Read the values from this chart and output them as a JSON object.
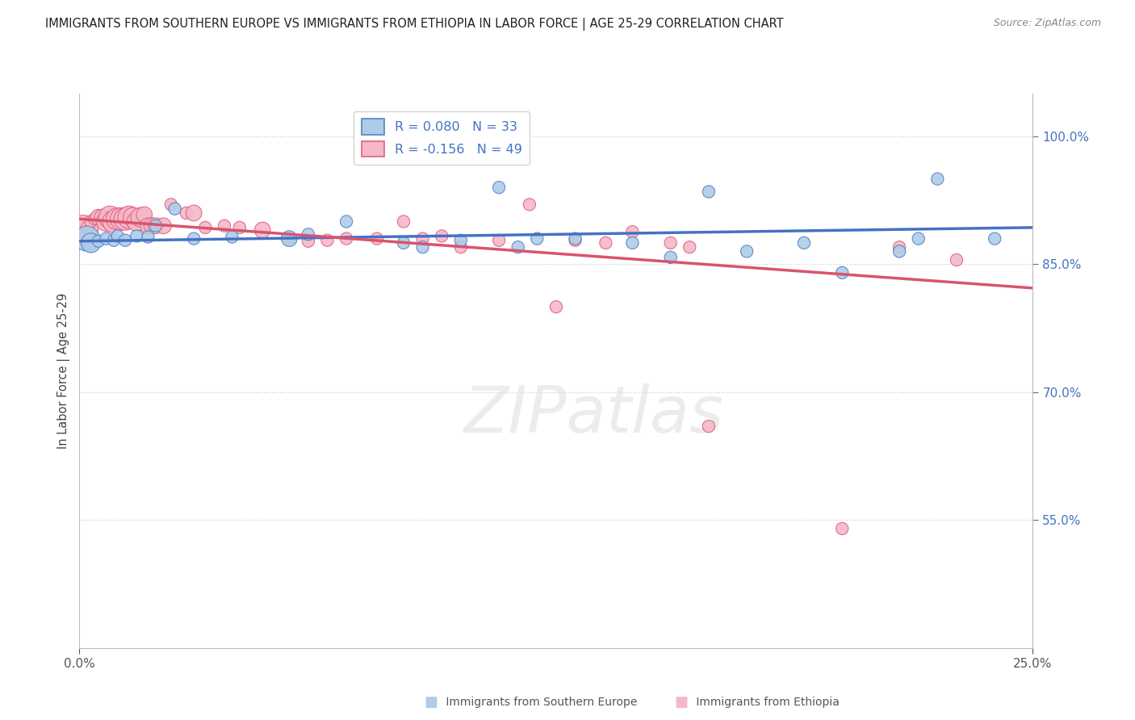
{
  "title": "IMMIGRANTS FROM SOUTHERN EUROPE VS IMMIGRANTS FROM ETHIOPIA IN LABOR FORCE | AGE 25-29 CORRELATION CHART",
  "source": "Source: ZipAtlas.com",
  "ylabel": "In Labor Force | Age 25-29",
  "xlim": [
    0.0,
    0.25
  ],
  "ylim": [
    0.4,
    1.05
  ],
  "ytick_vals": [
    0.55,
    0.7,
    0.85,
    1.0
  ],
  "ytick_labels": [
    "55.0%",
    "70.0%",
    "85.0%",
    "100.0%"
  ],
  "xtick_vals": [
    0.0,
    0.25
  ],
  "xtick_labels": [
    "0.0%",
    "25.0%"
  ],
  "legend_r_blue": "R = 0.080",
  "legend_n_blue": "N = 33",
  "legend_r_pink": "R = -0.156",
  "legend_n_pink": "N = 49",
  "blue_fill": "#aecce8",
  "blue_edge": "#5580c4",
  "pink_fill": "#f5b8c8",
  "pink_edge": "#e06080",
  "line_blue": "#4472c4",
  "line_pink": "#d9546e",
  "watermark_text": "ZIPatlas",
  "legend_label_blue": "Immigrants from Southern Europe",
  "legend_label_pink": "Immigrants from Ethiopia",
  "blue_scatter_x": [
    0.002,
    0.003,
    0.005,
    0.007,
    0.009,
    0.01,
    0.012,
    0.015,
    0.018,
    0.02,
    0.025,
    0.03,
    0.04,
    0.055,
    0.06,
    0.07,
    0.085,
    0.09,
    0.1,
    0.11,
    0.115,
    0.12,
    0.13,
    0.145,
    0.155,
    0.165,
    0.175,
    0.19,
    0.2,
    0.215,
    0.22,
    0.225,
    0.24
  ],
  "blue_scatter_y": [
    0.88,
    0.875,
    0.877,
    0.88,
    0.878,
    0.883,
    0.878,
    0.883,
    0.882,
    0.895,
    0.915,
    0.88,
    0.882,
    0.88,
    0.885,
    0.9,
    0.875,
    0.87,
    0.878,
    0.94,
    0.87,
    0.88,
    0.88,
    0.875,
    0.858,
    0.935,
    0.865,
    0.875,
    0.84,
    0.865,
    0.88,
    0.95,
    0.88
  ],
  "blue_scatter_sizes": [
    500,
    300,
    120,
    120,
    120,
    120,
    120,
    120,
    120,
    120,
    120,
    120,
    120,
    200,
    120,
    120,
    120,
    120,
    120,
    120,
    120,
    120,
    120,
    120,
    120,
    120,
    120,
    120,
    120,
    120,
    120,
    120,
    120
  ],
  "pink_scatter_x": [
    0.001,
    0.002,
    0.003,
    0.004,
    0.005,
    0.006,
    0.007,
    0.008,
    0.009,
    0.01,
    0.011,
    0.012,
    0.013,
    0.014,
    0.015,
    0.016,
    0.017,
    0.018,
    0.019,
    0.02,
    0.022,
    0.024,
    0.028,
    0.03,
    0.033,
    0.038,
    0.042,
    0.048,
    0.055,
    0.06,
    0.065,
    0.07,
    0.078,
    0.085,
    0.09,
    0.095,
    0.1,
    0.11,
    0.118,
    0.125,
    0.13,
    0.138,
    0.145,
    0.155,
    0.16,
    0.165,
    0.2,
    0.215,
    0.23
  ],
  "pink_scatter_y": [
    0.89,
    0.893,
    0.9,
    0.903,
    0.905,
    0.905,
    0.9,
    0.905,
    0.9,
    0.903,
    0.903,
    0.903,
    0.905,
    0.905,
    0.9,
    0.905,
    0.908,
    0.895,
    0.895,
    0.895,
    0.895,
    0.92,
    0.91,
    0.91,
    0.893,
    0.895,
    0.893,
    0.89,
    0.88,
    0.877,
    0.878,
    0.88,
    0.88,
    0.9,
    0.88,
    0.883,
    0.87,
    0.878,
    0.92,
    0.8,
    0.878,
    0.875,
    0.888,
    0.875,
    0.87,
    0.66,
    0.54,
    0.87,
    0.855
  ],
  "pink_scatter_sizes": [
    700,
    120,
    120,
    120,
    200,
    200,
    300,
    400,
    400,
    400,
    400,
    400,
    400,
    300,
    300,
    300,
    200,
    200,
    200,
    200,
    200,
    120,
    120,
    200,
    120,
    120,
    120,
    200,
    120,
    120,
    120,
    120,
    120,
    120,
    120,
    120,
    120,
    120,
    120,
    120,
    120,
    120,
    120,
    120,
    120,
    120,
    120,
    120,
    120
  ],
  "blue_trendline": [
    [
      0.0,
      0.25
    ],
    [
      0.877,
      0.893
    ]
  ],
  "pink_trendline": [
    [
      0.0,
      0.25
    ],
    [
      0.903,
      0.822
    ]
  ]
}
